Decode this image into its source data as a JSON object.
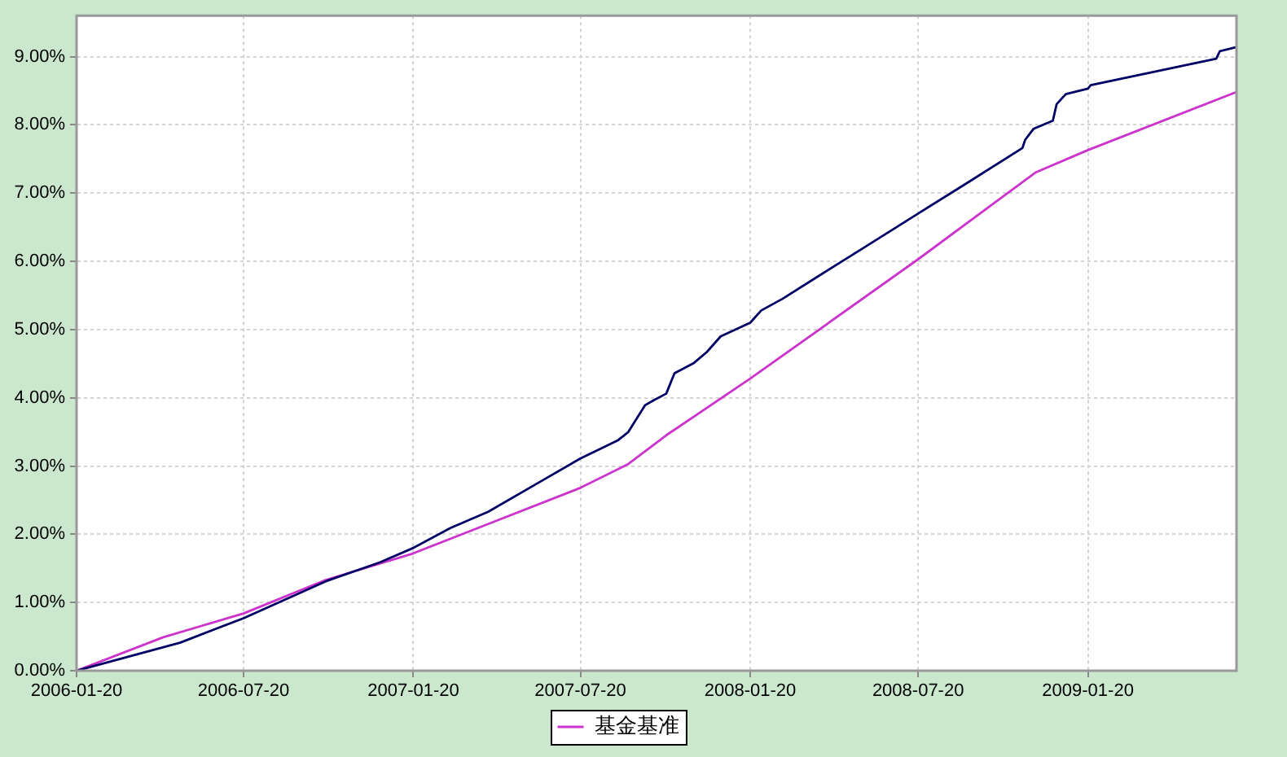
{
  "chart_data": {
    "type": "line",
    "xlim": [
      "2006-01-20",
      "2009-06-30"
    ],
    "xticks": [
      "2006-01-20",
      "2006-07-20",
      "2007-01-20",
      "2007-07-20",
      "2008-01-20",
      "2008-07-20",
      "2009-01-20"
    ],
    "ylim": [
      0,
      9.6
    ],
    "yticks": [
      {
        "value": 0,
        "label": "0.00%"
      },
      {
        "value": 1,
        "label": "1.00%"
      },
      {
        "value": 2,
        "label": "2.00%"
      },
      {
        "value": 3,
        "label": "3.00%"
      },
      {
        "value": 4,
        "label": "4.00%"
      },
      {
        "value": 5,
        "label": "5.00%"
      },
      {
        "value": 6,
        "label": "6.00%"
      },
      {
        "value": 7,
        "label": "7.00%"
      },
      {
        "value": 8,
        "label": "8.00%"
      },
      {
        "value": 9,
        "label": "9.00%"
      }
    ],
    "grid": true,
    "legend": "bottom",
    "marker": "none",
    "line_style": "solid",
    "series": [
      {
        "color": "#000066",
        "x": [
          "2006-01-20",
          "2006-05-12",
          "2006-07-20",
          "2006-10-17",
          "2006-12-15",
          "2007-01-20",
          "2007-03-01",
          "2007-04-11",
          "2007-06-09",
          "2007-07-20",
          "2007-08-30",
          "2007-09-10",
          "2007-09-28",
          "2007-10-07",
          "2007-10-21",
          "2007-10-30",
          "2007-11-20",
          "2007-12-04",
          "2007-12-19",
          "2008-01-20",
          "2008-02-01",
          "2008-02-24",
          "2008-03-29",
          "2008-05-21",
          "2008-07-20",
          "2008-09-09",
          "2008-11-10",
          "2008-11-13",
          "2008-11-22",
          "2008-12-13",
          "2008-12-17",
          "2008-12-27",
          "2009-01-20",
          "2009-01-23",
          "2009-06-08",
          "2009-06-12",
          "2009-06-30"
        ],
        "values": [
          0,
          0.41,
          0.77,
          1.31,
          1.59,
          1.8,
          2.09,
          2.33,
          2.79,
          3.11,
          3.38,
          3.5,
          3.89,
          3.96,
          4.06,
          4.36,
          4.51,
          4.67,
          4.9,
          5.1,
          5.28,
          5.45,
          5.74,
          6.19,
          6.7,
          7.13,
          7.66,
          7.78,
          7.94,
          8.06,
          8.3,
          8.45,
          8.53,
          8.58,
          8.97,
          9.08,
          9.14
        ]
      },
      {
        "name": "基金基准",
        "color": "#cc33cc",
        "x": [
          "2006-01-20",
          "2006-04-24",
          "2006-07-20",
          "2006-10-17",
          "2007-01-20",
          "2007-04-11",
          "2007-07-20",
          "2007-09-10",
          "2007-10-21",
          "2008-01-20",
          "2008-07-20",
          "2008-11-24",
          "2009-01-20",
          "2009-06-30"
        ],
        "values": [
          0,
          0.49,
          0.84,
          1.33,
          1.72,
          2.15,
          2.68,
          3.03,
          3.45,
          4.28,
          6.03,
          7.3,
          7.63,
          8.48
        ]
      }
    ]
  }
}
